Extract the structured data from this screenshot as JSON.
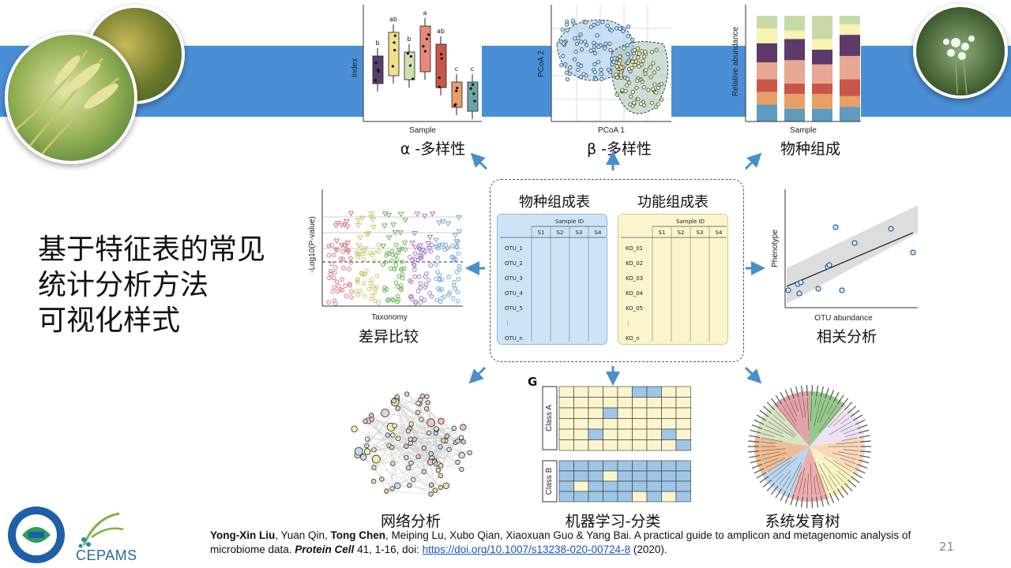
{
  "slide": {
    "title_lines": [
      "基于特征表的常见",
      "统计分析方法",
      "可视化样式"
    ],
    "page_number": "21"
  },
  "panels": {
    "alpha": {
      "label": "α -多样性",
      "xlabel": "Sample",
      "ylabel": "Index",
      "letters": [
        "b",
        "ab",
        "b",
        "a",
        "ab",
        "c",
        "c"
      ]
    },
    "beta": {
      "label": "β -多样性",
      "xlabel": "PCoA 1",
      "ylabel": "PCoA 2"
    },
    "composition": {
      "label": "物种组成",
      "xlabel": "Sample",
      "ylabel": "Relative abundance"
    },
    "diff": {
      "label": "差异比较",
      "xlabel": "Taxonomy",
      "ylabel": "-Log10(P-value)"
    },
    "corr": {
      "label": "相关分析",
      "xlabel": "OTU abundance",
      "ylabel": "Phenotype"
    },
    "network": {
      "label": "网络分析"
    },
    "ml": {
      "label": "机器学习-分类",
      "panel_letter": "G",
      "class_a": "Class A",
      "class_b": "Class B"
    },
    "tree": {
      "label": "系统发育树"
    }
  },
  "tables": {
    "species": {
      "title": "物种组成表",
      "header": "Sample ID",
      "columns": [
        "S1",
        "S2",
        "S3",
        "S4"
      ],
      "rows": [
        "OTU_1",
        "OTU_2",
        "OTU_3",
        "OTU_4",
        "OTU_5",
        "⋮",
        "OTU_n"
      ]
    },
    "function": {
      "title": "功能组成表",
      "header": "Sample ID",
      "columns": [
        "S1",
        "S2",
        "S3",
        "S4"
      ],
      "rows": [
        "KO_01",
        "KO_02",
        "KO_03",
        "KO_04",
        "KO_05",
        "⋮",
        "KO_n"
      ]
    }
  },
  "citation": {
    "author1": "Yong-Xin Liu",
    "part1": ", Yuan Qin, ",
    "author2": "Tong Chen",
    "part2": ", Meiping Lu, Xubo Qian, Xiaoxuan Guo & Yang Bai. A practical guide to amplicon and metagenomic analysis of microbiome data. ",
    "journal": "Protein Cell",
    "part3": " 41, 1-16, doi: ",
    "doi": "https://doi.org/10.1007/s13238-020-00724-8",
    "year": " (2020)."
  },
  "logos": {
    "cepams": "CEPAMS"
  },
  "colors": {
    "band": "#4a8fd6",
    "arrow": "#4a8fc8",
    "link": "#1b55c4"
  }
}
